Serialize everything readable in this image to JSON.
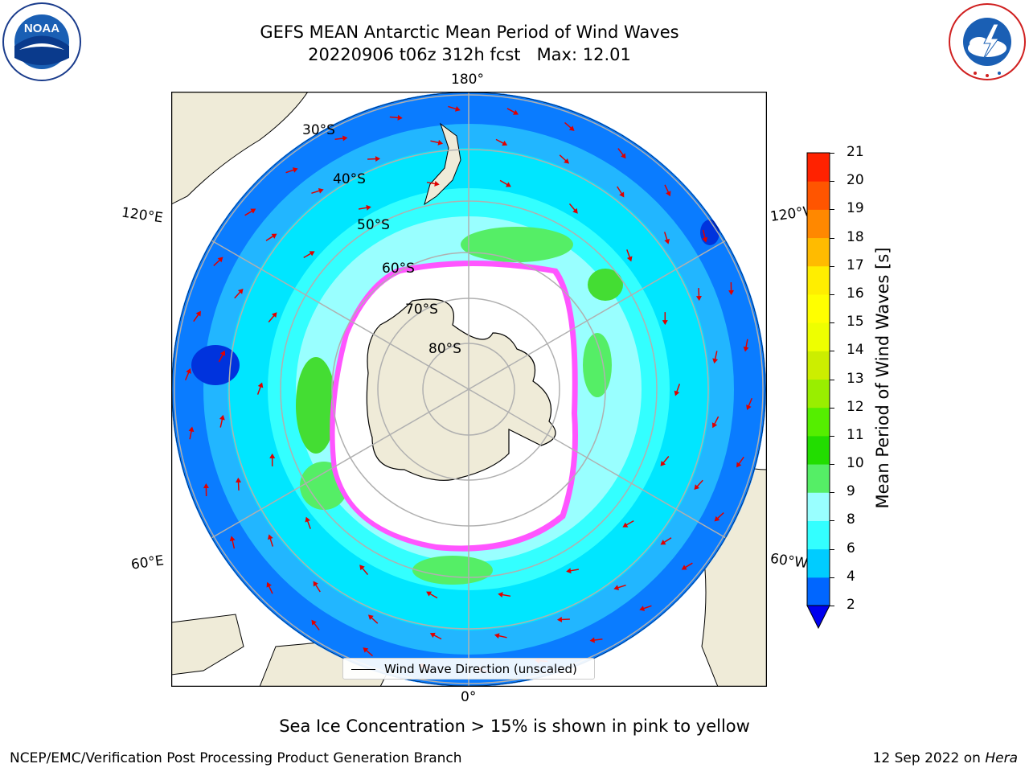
{
  "title": {
    "line1": "GEFS MEAN Antarctic Mean Period of Wind Waves",
    "line2": "20220906 t06z 312h fcst   Max: 12.01"
  },
  "logos": {
    "left": {
      "icon": "noaa-logo",
      "text": "NOAA",
      "ring_text": "NATIONAL OCEANIC AND ATMOSPHERIC ADMINISTRATION · U.S. DEPARTMENT OF COMMERCE"
    },
    "right": {
      "icon": "nws-logo",
      "ring_text": "NATIONAL WEATHER SERVICE"
    }
  },
  "map": {
    "projection": "south-polar-stereographic",
    "longitude_labels": {
      "top": "180°",
      "bottom": "0°",
      "upper_left": "120°E",
      "upper_right": "120°W",
      "lower_left": "60°E",
      "lower_right": "60°W"
    },
    "latitude_labels": [
      "30°S",
      "40°S",
      "50°S",
      "60°S",
      "70°S",
      "80°S"
    ],
    "legend": "Wind Wave Direction (unscaled)",
    "colors": {
      "land": "#efebd8",
      "ice_free": "#ffffff",
      "grid": "#b0b0b0",
      "arrow": "#e00000",
      "ice_edge": "#ff33ff"
    }
  },
  "colorbar": {
    "label": "Mean Period of Wind Waves [s]",
    "ticks": [
      "2",
      "4",
      "6",
      "8",
      "9",
      "10",
      "11",
      "12",
      "13",
      "14",
      "15",
      "16",
      "17",
      "18",
      "19",
      "20",
      "21"
    ],
    "colors": [
      "#0066ff",
      "#00ccff",
      "#33ffff",
      "#99ffff",
      "#55ee66",
      "#22dd00",
      "#55ee00",
      "#99ee00",
      "#ccee00",
      "#eeff00",
      "#ffff00",
      "#ffee00",
      "#ffbb00",
      "#ff8800",
      "#ff5500",
      "#ff2200"
    ],
    "under_color": "#0000ee"
  },
  "footer": {
    "note": "Sea Ice Concentration > 15% is shown in pink to yellow",
    "credit_left": "NCEP/EMC/Verification Post Processing Product Generation Branch",
    "date": "12 Sep 2022 on",
    "machine": "Hera"
  }
}
